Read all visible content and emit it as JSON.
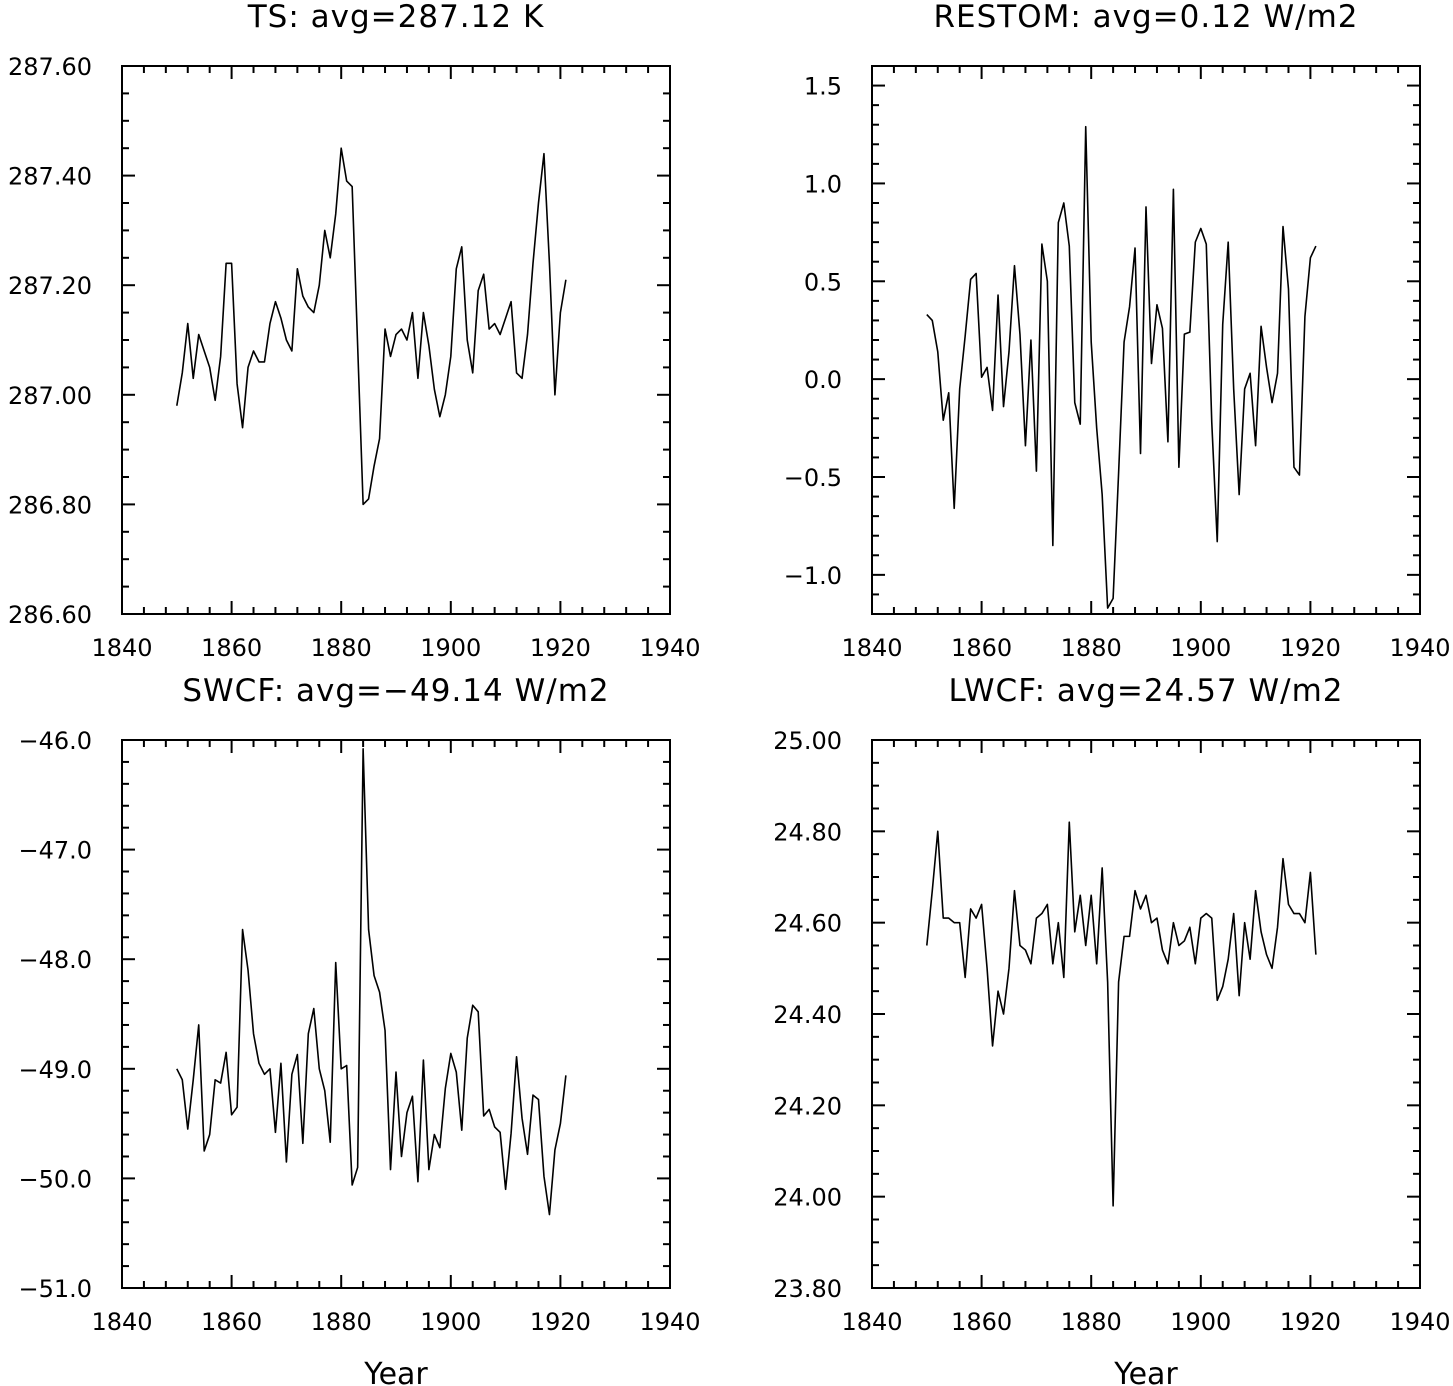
{
  "chart_data": [
    {
      "type": "line",
      "title": "TS: avg=287.12 K",
      "xlabel": "",
      "ylabel": "",
      "xlim": [
        1840,
        1940
      ],
      "ylim": [
        286.6,
        287.6
      ],
      "xticks": [
        1840,
        1860,
        1880,
        1900,
        1920,
        1940
      ],
      "xtick_labels": [
        "1840",
        "1860",
        "1880",
        "1900",
        "1920",
        "1940"
      ],
      "yticks": [
        286.6,
        286.8,
        287.0,
        287.2,
        287.4,
        287.6
      ],
      "ytick_labels": [
        "286.60",
        "286.80",
        "287.00",
        "287.20",
        "287.40",
        "287.60"
      ],
      "x_minor_step": 4,
      "y_minor_step": 0.05,
      "x": [
        1850,
        1851,
        1852,
        1853,
        1854,
        1855,
        1856,
        1857,
        1858,
        1859,
        1860,
        1861,
        1862,
        1863,
        1864,
        1865,
        1866,
        1867,
        1868,
        1869,
        1870,
        1871,
        1872,
        1873,
        1874,
        1875,
        1876,
        1877,
        1878,
        1879,
        1880,
        1881,
        1882,
        1883,
        1884,
        1885,
        1886,
        1887,
        1888,
        1889,
        1890,
        1891,
        1892,
        1893,
        1894,
        1895,
        1896,
        1897,
        1898,
        1899,
        1900,
        1901,
        1902,
        1903,
        1904,
        1905,
        1906,
        1907,
        1908,
        1909,
        1910,
        1911,
        1912,
        1913,
        1914,
        1915,
        1916,
        1917,
        1918,
        1919,
        1920,
        1921
      ],
      "values": [
        286.98,
        287.04,
        287.13,
        287.03,
        287.11,
        287.08,
        287.05,
        286.99,
        287.07,
        287.24,
        287.24,
        287.02,
        286.94,
        287.05,
        287.08,
        287.06,
        287.06,
        287.13,
        287.17,
        287.14,
        287.1,
        287.08,
        287.23,
        287.18,
        287.16,
        287.15,
        287.2,
        287.3,
        287.25,
        287.33,
        287.45,
        287.39,
        287.38,
        287.09,
        286.8,
        286.81,
        286.87,
        286.92,
        287.12,
        287.07,
        287.11,
        287.12,
        287.1,
        287.15,
        287.03,
        287.15,
        287.09,
        287.01,
        286.96,
        287.0,
        287.07,
        287.23,
        287.27,
        287.1,
        287.04,
        287.19,
        287.22,
        287.12,
        287.13,
        287.11,
        287.14,
        287.17,
        287.04,
        287.03,
        287.11,
        287.24,
        287.35,
        287.44,
        287.24,
        287.0,
        287.15,
        287.21
      ]
    },
    {
      "type": "line",
      "title": "RESTOM: avg=0.12 W/m2",
      "xlabel": "",
      "ylabel": "",
      "xlim": [
        1840,
        1940
      ],
      "ylim": [
        -1.2,
        1.6
      ],
      "xticks": [
        1840,
        1860,
        1880,
        1900,
        1920,
        1940
      ],
      "xtick_labels": [
        "1840",
        "1860",
        "1880",
        "1900",
        "1920",
        "1940"
      ],
      "yticks": [
        -1.0,
        -0.5,
        0.0,
        0.5,
        1.0,
        1.5
      ],
      "ytick_labels": [
        "−1.0",
        "−0.5",
        "0.0",
        "0.5",
        "1.0",
        "1.5"
      ],
      "x_minor_step": 4,
      "y_minor_step": 0.1,
      "x": [
        1850,
        1851,
        1852,
        1853,
        1854,
        1855,
        1856,
        1857,
        1858,
        1859,
        1860,
        1861,
        1862,
        1863,
        1864,
        1865,
        1866,
        1867,
        1868,
        1869,
        1870,
        1871,
        1872,
        1873,
        1874,
        1875,
        1876,
        1877,
        1878,
        1879,
        1880,
        1881,
        1882,
        1883,
        1884,
        1885,
        1886,
        1887,
        1888,
        1889,
        1890,
        1891,
        1892,
        1893,
        1894,
        1895,
        1896,
        1897,
        1898,
        1899,
        1900,
        1901,
        1902,
        1903,
        1904,
        1905,
        1906,
        1907,
        1908,
        1909,
        1910,
        1911,
        1912,
        1913,
        1914,
        1915,
        1916,
        1917,
        1918,
        1919,
        1920,
        1921
      ],
      "values": [
        0.33,
        0.3,
        0.14,
        -0.21,
        -0.07,
        -0.66,
        -0.05,
        0.22,
        0.51,
        0.54,
        0.01,
        0.06,
        -0.16,
        0.43,
        -0.14,
        0.14,
        0.58,
        0.23,
        -0.34,
        0.2,
        -0.47,
        0.69,
        0.5,
        -0.85,
        0.8,
        0.9,
        0.68,
        -0.12,
        -0.23,
        1.29,
        0.19,
        -0.25,
        -0.59,
        -1.17,
        -1.12,
        -0.48,
        0.19,
        0.37,
        0.67,
        -0.38,
        0.88,
        0.08,
        0.38,
        0.26,
        -0.32,
        0.97,
        -0.45,
        0.23,
        0.24,
        0.7,
        0.77,
        0.69,
        -0.22,
        -0.83,
        0.28,
        0.7,
        -0.05,
        -0.59,
        -0.05,
        0.03,
        -0.34,
        0.27,
        0.06,
        -0.12,
        0.03,
        0.78,
        0.46,
        -0.45,
        -0.49,
        0.32,
        0.62,
        0.68
      ]
    },
    {
      "type": "line",
      "title": "SWCF: avg=−49.14 W/m2",
      "xlabel": "Year",
      "ylabel": "",
      "xlim": [
        1840,
        1940
      ],
      "ylim": [
        -51.0,
        -46.0
      ],
      "xticks": [
        1840,
        1860,
        1880,
        1900,
        1920,
        1940
      ],
      "xtick_labels": [
        "1840",
        "1860",
        "1880",
        "1900",
        "1920",
        "1940"
      ],
      "yticks": [
        -51.0,
        -50.0,
        -49.0,
        -48.0,
        -47.0,
        -46.0
      ],
      "ytick_labels": [
        "−51.0",
        "−50.0",
        "−49.0",
        "−48.0",
        "−47.0",
        "−46.0"
      ],
      "x_minor_step": 4,
      "y_minor_step": 0.2,
      "x": [
        1850,
        1851,
        1852,
        1853,
        1854,
        1855,
        1856,
        1857,
        1858,
        1859,
        1860,
        1861,
        1862,
        1863,
        1864,
        1865,
        1866,
        1867,
        1868,
        1869,
        1870,
        1871,
        1872,
        1873,
        1874,
        1875,
        1876,
        1877,
        1878,
        1879,
        1880,
        1881,
        1882,
        1883,
        1884,
        1885,
        1886,
        1887,
        1888,
        1889,
        1890,
        1891,
        1892,
        1893,
        1894,
        1895,
        1896,
        1897,
        1898,
        1899,
        1900,
        1901,
        1902,
        1903,
        1904,
        1905,
        1906,
        1907,
        1908,
        1909,
        1910,
        1911,
        1912,
        1913,
        1914,
        1915,
        1916,
        1917,
        1918,
        1919,
        1920,
        1921
      ],
      "values": [
        -49.0,
        -49.1,
        -49.55,
        -49.1,
        -48.6,
        -49.75,
        -49.6,
        -49.1,
        -49.13,
        -48.85,
        -49.42,
        -49.35,
        -47.73,
        -48.1,
        -48.68,
        -48.95,
        -49.05,
        -49.0,
        -49.58,
        -48.95,
        -49.85,
        -49.05,
        -48.87,
        -49.68,
        -48.68,
        -48.45,
        -49.0,
        -49.2,
        -49.67,
        -48.03,
        -49.0,
        -48.97,
        -50.06,
        -49.9,
        -46.08,
        -47.73,
        -48.15,
        -48.3,
        -48.65,
        -49.92,
        -49.03,
        -49.8,
        -49.4,
        -49.25,
        -50.03,
        -48.92,
        -49.92,
        -49.6,
        -49.72,
        -49.18,
        -48.86,
        -49.03,
        -49.56,
        -48.72,
        -48.42,
        -48.48,
        -49.43,
        -49.37,
        -49.53,
        -49.58,
        -50.1,
        -49.59,
        -48.89,
        -49.45,
        -49.78,
        -49.24,
        -49.28,
        -49.98,
        -50.33,
        -49.74,
        -49.5,
        -49.06
      ]
    },
    {
      "type": "line",
      "title": "LWCF: avg=24.57 W/m2",
      "xlabel": "Year",
      "ylabel": "",
      "xlim": [
        1840,
        1940
      ],
      "ylim": [
        23.8,
        25.0
      ],
      "xticks": [
        1840,
        1860,
        1880,
        1900,
        1920,
        1940
      ],
      "xtick_labels": [
        "1840",
        "1860",
        "1880",
        "1900",
        "1920",
        "1940"
      ],
      "yticks": [
        23.8,
        24.0,
        24.2,
        24.4,
        24.6,
        24.8,
        25.0
      ],
      "ytick_labels": [
        "23.80",
        "24.00",
        "24.20",
        "24.40",
        "24.60",
        "24.80",
        "25.00"
      ],
      "x_minor_step": 4,
      "y_minor_step": 0.05,
      "x": [
        1850,
        1851,
        1852,
        1853,
        1854,
        1855,
        1856,
        1857,
        1858,
        1859,
        1860,
        1861,
        1862,
        1863,
        1864,
        1865,
        1866,
        1867,
        1868,
        1869,
        1870,
        1871,
        1872,
        1873,
        1874,
        1875,
        1876,
        1877,
        1878,
        1879,
        1880,
        1881,
        1882,
        1883,
        1884,
        1885,
        1886,
        1887,
        1888,
        1889,
        1890,
        1891,
        1892,
        1893,
        1894,
        1895,
        1896,
        1897,
        1898,
        1899,
        1900,
        1901,
        1902,
        1903,
        1904,
        1905,
        1906,
        1907,
        1908,
        1909,
        1910,
        1911,
        1912,
        1913,
        1914,
        1915,
        1916,
        1917,
        1918,
        1919,
        1920,
        1921
      ],
      "values": [
        24.55,
        24.67,
        24.8,
        24.61,
        24.61,
        24.6,
        24.6,
        24.48,
        24.63,
        24.61,
        24.64,
        24.5,
        24.33,
        24.45,
        24.4,
        24.5,
        24.67,
        24.55,
        24.54,
        24.51,
        24.61,
        24.62,
        24.64,
        24.51,
        24.6,
        24.48,
        24.82,
        24.58,
        24.66,
        24.55,
        24.66,
        24.51,
        24.72,
        24.47,
        23.98,
        24.47,
        24.57,
        24.57,
        24.67,
        24.63,
        24.66,
        24.6,
        24.61,
        24.54,
        24.51,
        24.6,
        24.55,
        24.56,
        24.59,
        24.51,
        24.61,
        24.62,
        24.61,
        24.43,
        24.46,
        24.52,
        24.62,
        24.44,
        24.6,
        24.52,
        24.67,
        24.58,
        24.53,
        24.5,
        24.59,
        24.74,
        24.64,
        24.62,
        24.62,
        24.6,
        24.71,
        24.53
      ]
    }
  ]
}
